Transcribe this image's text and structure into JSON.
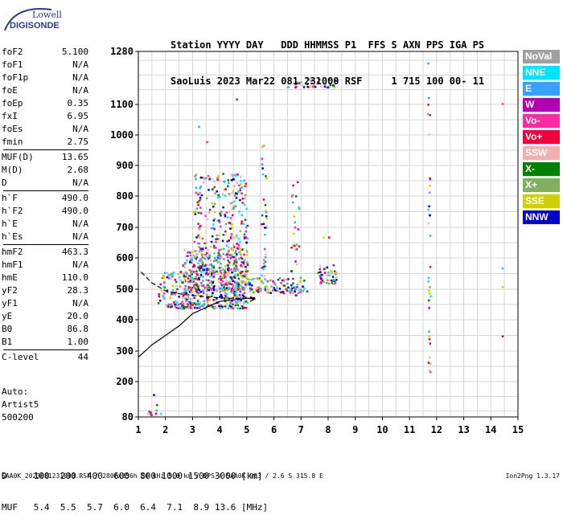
{
  "logo": {
    "line1": "Lowell",
    "line2": "DIGISONDE"
  },
  "header": {
    "line1": "Station YYYY DAY   DDD HHMMSS P1  FFS S AXN PPS IGA PS",
    "line2": "SaoLuis 2023 Mar22 081 231000 RSF     1 715 100 00- 11"
  },
  "params": [
    {
      "label": "foF2",
      "value": "5.100"
    },
    {
      "label": "foF1",
      "value": "N/A"
    },
    {
      "label": "foF1p",
      "value": "N/A"
    },
    {
      "label": "foE",
      "value": "N/A"
    },
    {
      "label": "foEp",
      "value": "0.35"
    },
    {
      "label": "fxI",
      "value": "6.95"
    },
    {
      "label": "foEs",
      "value": "N/A"
    },
    {
      "label": "fmin",
      "value": "2.75"
    },
    {
      "label": "MUF(D)",
      "value": "13.65"
    },
    {
      "label": "M(D)",
      "value": "2.68"
    },
    {
      "label": "D",
      "value": "N/A"
    },
    {
      "label": "h`F",
      "value": "490.0"
    },
    {
      "label": "h`F2",
      "value": "490.0"
    },
    {
      "label": "h`E",
      "value": "N/A"
    },
    {
      "label": "h`Es",
      "value": "N/A"
    },
    {
      "label": "hmF2",
      "value": "463.3"
    },
    {
      "label": "hmF1",
      "value": "N/A"
    },
    {
      "label": "hmE",
      "value": "110.0"
    },
    {
      "label": "yF2",
      "value": "28.3"
    },
    {
      "label": "yF1",
      "value": "N/A"
    },
    {
      "label": "yE",
      "value": "20.0"
    },
    {
      "label": "B0",
      "value": "86.8"
    },
    {
      "label": "B1",
      "value": "1.00"
    },
    {
      "label": "C-level",
      "value": "44"
    }
  ],
  "auto": {
    "line1": "Auto:",
    "line2": "Artist5",
    "line3": "500200"
  },
  "legend": [
    {
      "label": "NoVal",
      "color": "#a0a0a0"
    },
    {
      "label": "NNE",
      "color": "#00e5ff"
    },
    {
      "label": "E",
      "color": "#3aa0ff"
    },
    {
      "label": "W",
      "color": "#b000b0"
    },
    {
      "label": "Vo-",
      "color": "#ff2aa0"
    },
    {
      "label": "Vo+",
      "color": "#f0003c"
    },
    {
      "label": "SSW",
      "color": "#f0b0b0"
    },
    {
      "label": "X-",
      "color": "#008000"
    },
    {
      "label": "X+",
      "color": "#80b060"
    },
    {
      "label": "SSE",
      "color": "#d0d000"
    },
    {
      "label": "NNW",
      "color": "#0000c8"
    }
  ],
  "muf_table": {
    "line1": "D     100  200  400  600  800 1000 1500 3000 [km]",
    "line2": "MUF   5.4  5.5  5.7  6.0  6.4  7.1  8.9 13.6 [MHz]"
  },
  "footer": {
    "left": "SAA0K_2023081231000.RSF / 280fx256h 50 kHz 5.0 km / DPS-4 SAA0K 903 / 2.6 S 315.8 E",
    "right": "Ion2Png 1.3.17"
  },
  "chart_data": {
    "type": "scatter",
    "title": "",
    "xlabel": "",
    "ylabel": "",
    "xlim": [
      1,
      15
    ],
    "ylim": [
      80,
      1280
    ],
    "x_ticks": [
      "1",
      "2",
      "3",
      "4",
      "5",
      "6",
      "7",
      "8",
      "9",
      "10",
      "11",
      "12",
      "13",
      "14",
      "15"
    ],
    "y_ticks": [
      "80",
      "200",
      "300",
      "400",
      "500",
      "600",
      "700",
      "800",
      "900",
      "1000",
      "1100",
      "1280"
    ],
    "x_tick_values": [
      1,
      2,
      3,
      4,
      5,
      6,
      7,
      8,
      9,
      10,
      11,
      12,
      13,
      14,
      15
    ],
    "y_tick_values": [
      80,
      200,
      300,
      400,
      500,
      600,
      700,
      800,
      900,
      1000,
      1100,
      1280
    ],
    "grid": true,
    "profile_curve": [
      [
        1,
        280
      ],
      [
        1.5,
        320
      ],
      [
        2,
        350
      ],
      [
        2.5,
        380
      ],
      [
        3,
        420
      ],
      [
        3.5,
        440
      ],
      [
        4,
        460
      ],
      [
        4.5,
        465
      ],
      [
        5,
        470
      ],
      [
        5.3,
        472
      ]
    ],
    "trace_curve": [
      [
        1.1,
        555
      ],
      [
        1.5,
        520
      ],
      [
        2,
        495
      ],
      [
        2.5,
        485
      ],
      [
        3,
        480
      ],
      [
        3.5,
        475
      ],
      [
        4,
        472
      ],
      [
        4.5,
        470
      ],
      [
        5,
        470
      ],
      [
        5.3,
        468
      ]
    ],
    "clusters": [
      {
        "name": "F-trace",
        "x": [
          2.6,
          5.0
        ],
        "y": [
          440,
          640
        ],
        "n": 520
      },
      {
        "name": "F-spread",
        "x": [
          3.0,
          5.0
        ],
        "y": [
          500,
          880
        ],
        "n": 360
      },
      {
        "name": "low-band",
        "x": [
          1.7,
          3.0
        ],
        "y": [
          440,
          560
        ],
        "n": 110
      },
      {
        "name": "mid-band",
        "x": [
          5.0,
          7.2
        ],
        "y": [
          490,
          540
        ],
        "n": 110
      },
      {
        "name": "cluster-8",
        "x": [
          7.6,
          8.3
        ],
        "y": [
          520,
          580
        ],
        "n": 45
      },
      {
        "name": "col-5.6",
        "x": [
          5.5,
          5.7
        ],
        "y": [
          500,
          970
        ],
        "n": 40
      },
      {
        "name": "col-6.7",
        "x": [
          6.6,
          6.9
        ],
        "y": [
          480,
          850
        ],
        "n": 30
      },
      {
        "name": "high-band",
        "x": [
          6.4,
          8.3
        ],
        "y": [
          1160,
          1190
        ],
        "n": 35
      },
      {
        "name": "col-11.7",
        "x": [
          11.65,
          11.75
        ],
        "y": [
          180,
          1280
        ],
        "n": 34
      },
      {
        "name": "low-2",
        "x": [
          1.3,
          1.8
        ],
        "y": [
          90,
          170
        ],
        "n": 10
      }
    ],
    "isolated_points": [
      [
        3.2,
        1030
      ],
      [
        3.5,
        980
      ],
      [
        4.6,
        1120
      ],
      [
        14.4,
        1105
      ],
      [
        14.4,
        570
      ],
      [
        14.4,
        510
      ],
      [
        14.4,
        350
      ],
      [
        7.8,
        670
      ],
      [
        8.0,
        670
      ]
    ]
  }
}
